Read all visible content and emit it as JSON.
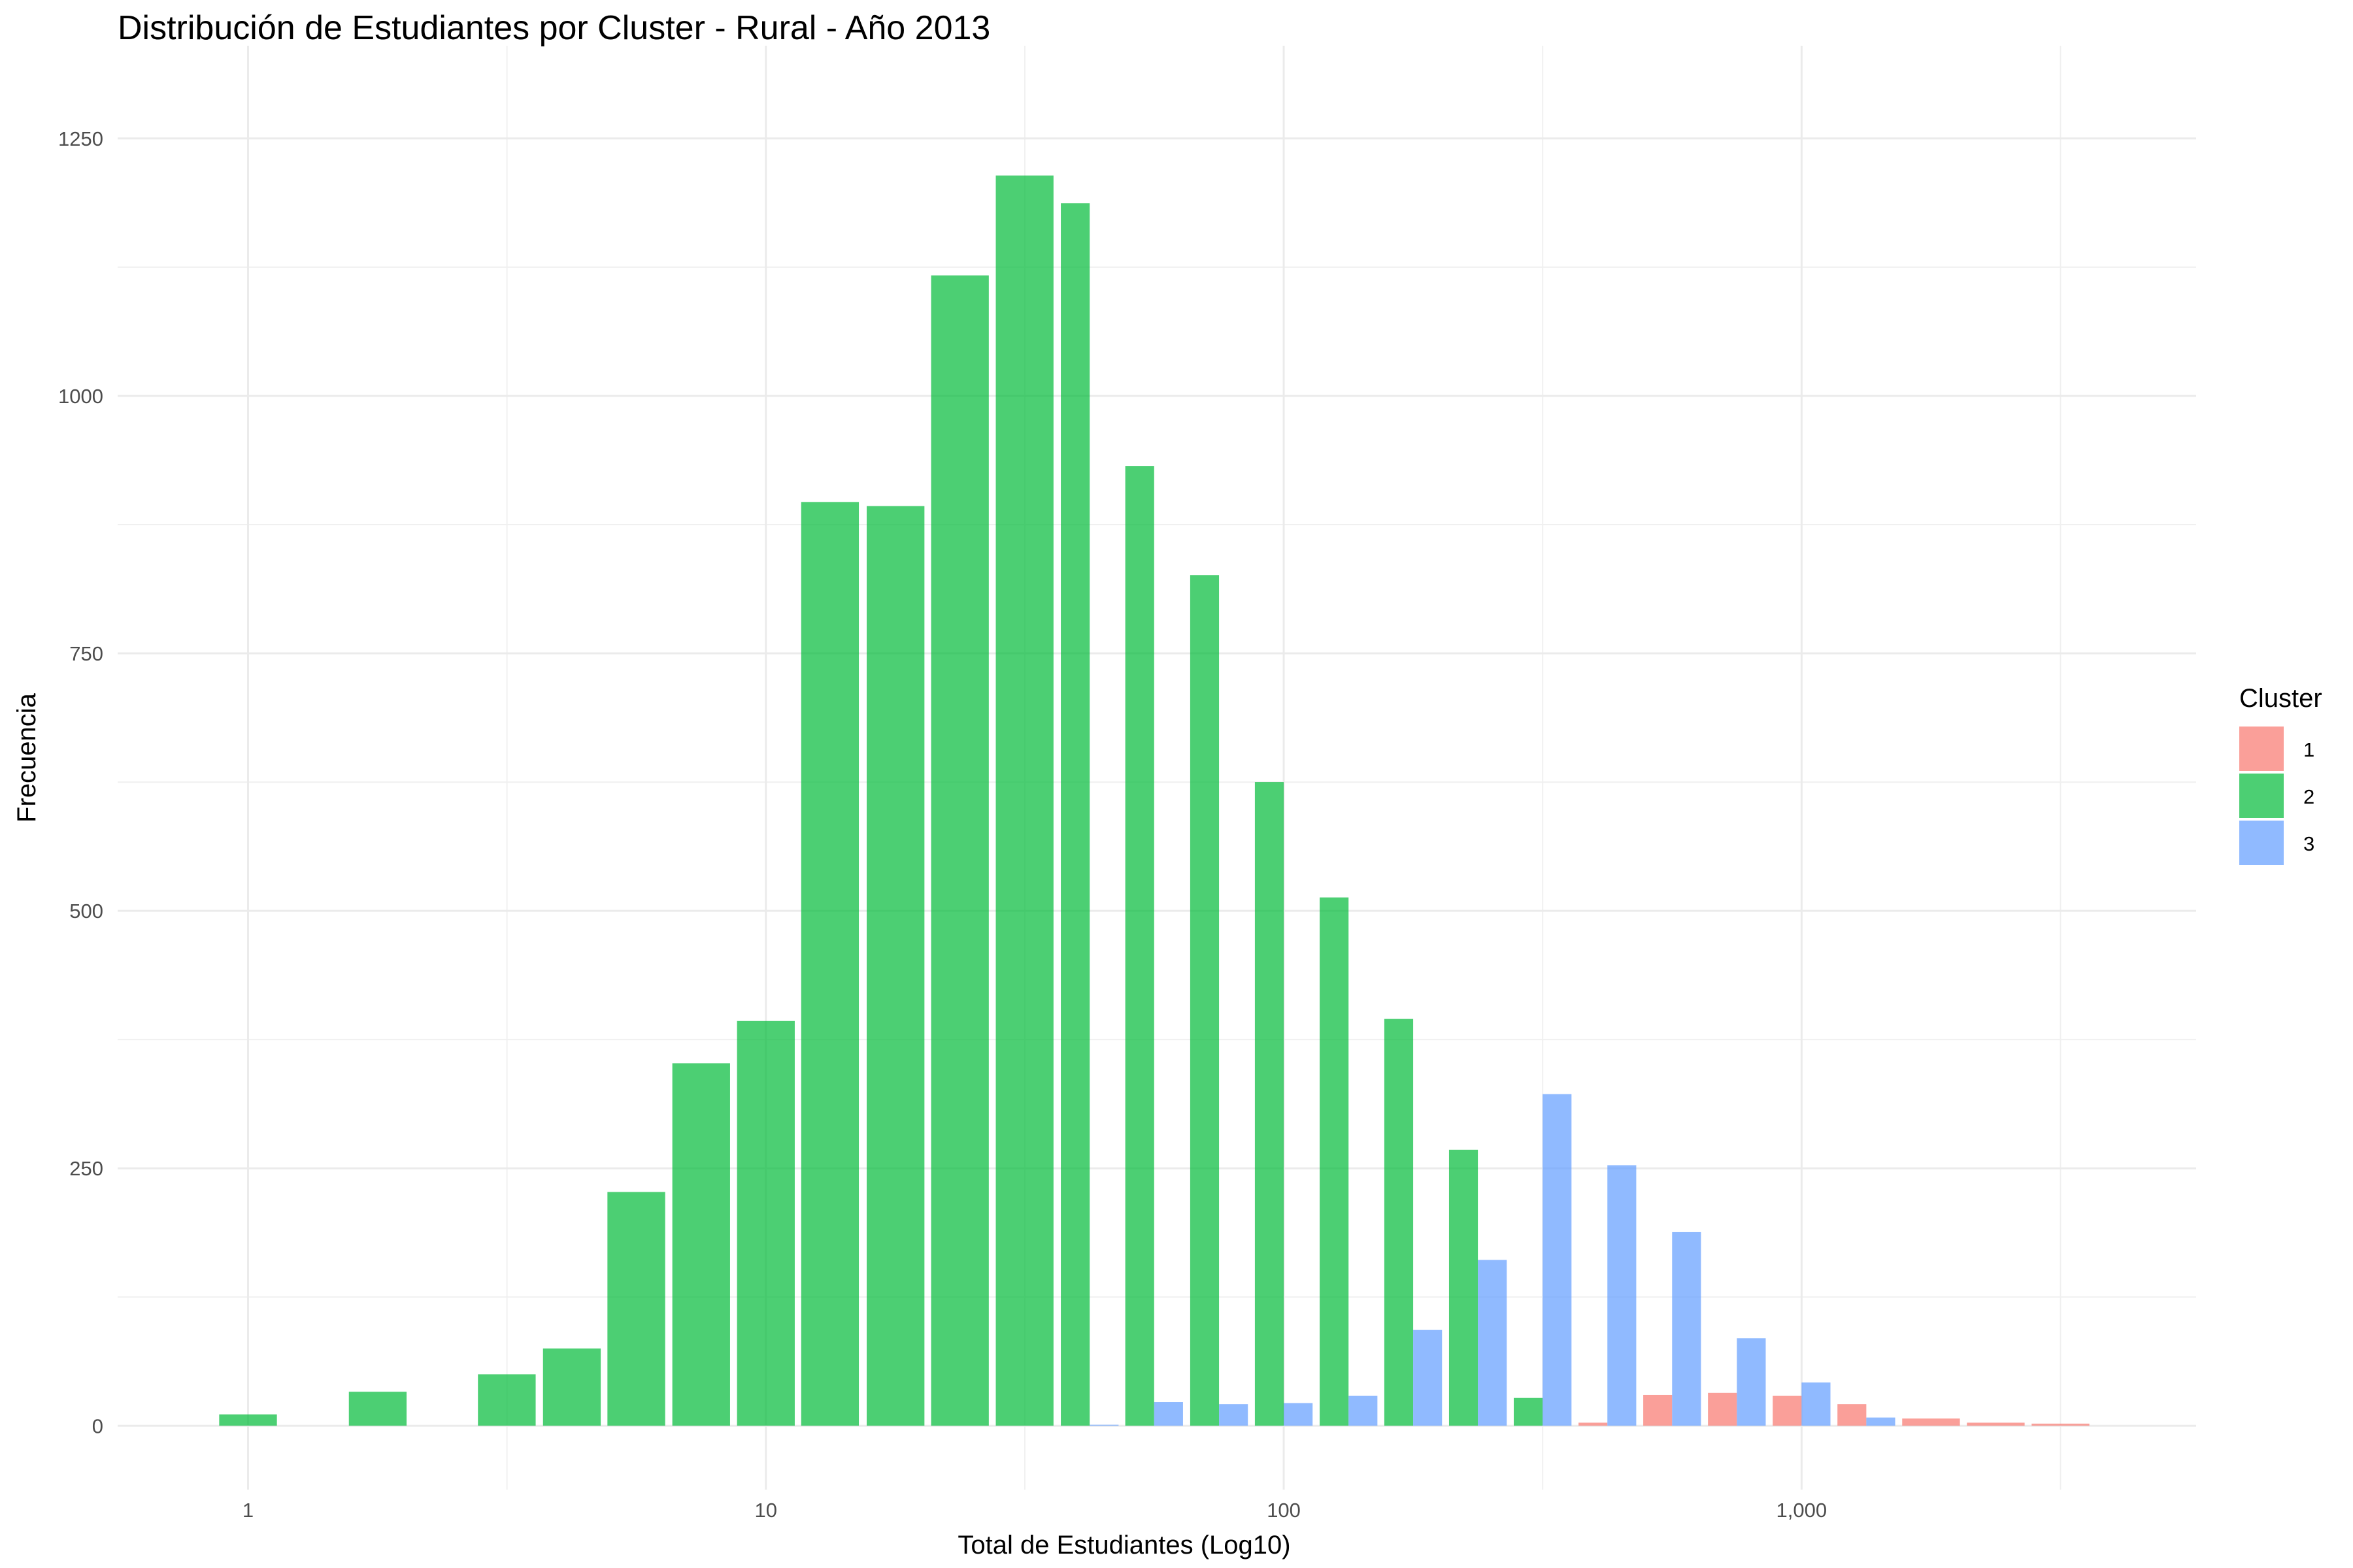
{
  "chart_data": {
    "type": "bar",
    "title": "Distribución de Estudiantes por Cluster - Rural - Año 2013",
    "xlabel": "Total de Estudiantes (Log10)",
    "ylabel": "Frecuencia",
    "x_scale": "log10",
    "x_ticks": [
      {
        "value": 1,
        "label": "1"
      },
      {
        "value": 10,
        "label": "10"
      },
      {
        "value": 100,
        "label": "100"
      },
      {
        "value": 1000,
        "label": "1,000"
      }
    ],
    "y_ticks": [
      {
        "value": 0,
        "label": "0"
      },
      {
        "value": 250,
        "label": "250"
      },
      {
        "value": 500,
        "label": "500"
      },
      {
        "value": 750,
        "label": "750"
      },
      {
        "value": 1000,
        "label": "1000"
      },
      {
        "value": 1250,
        "label": "1250"
      }
    ],
    "xlim": [
      0.56,
      5780
    ],
    "ylim": [
      -62,
      1340
    ],
    "grid": true,
    "legend": {
      "title": "Cluster",
      "position": "right"
    },
    "bin_centers": [
      1.0,
      1.33,
      1.78,
      2.37,
      3.16,
      4.22,
      5.62,
      7.5,
      10.0,
      13.3,
      17.8,
      23.7,
      31.6,
      42.2,
      56.2,
      75.0,
      100.0,
      133.4,
      177.8,
      237.1,
      316.2,
      421.7,
      562.3,
      749.9,
      1000.0,
      1333.5,
      1778.3,
      2371.4,
      3162.3
    ],
    "series": [
      {
        "name": "1",
        "color": "#F8766D",
        "values": [
          0,
          0,
          0,
          0,
          0,
          0,
          0,
          0,
          0,
          0,
          0,
          0,
          0,
          0,
          0,
          0,
          0,
          0,
          0,
          0,
          0,
          3,
          30,
          32,
          29,
          21,
          7,
          3,
          2
        ]
      },
      {
        "name": "2",
        "color": "#00BA38",
        "values": [
          11,
          0,
          33,
          0,
          50,
          75,
          227,
          352,
          393,
          897,
          893,
          1117,
          1214,
          1187,
          932,
          826,
          625,
          513,
          395,
          268,
          27,
          0,
          0,
          0,
          0,
          0,
          0,
          0,
          0
        ]
      },
      {
        "name": "3",
        "color": "#619CFF",
        "values": [
          0,
          0,
          0,
          0,
          0,
          0,
          0,
          0,
          0,
          0,
          0,
          0,
          0,
          1,
          23,
          21,
          22,
          29,
          93,
          161,
          322,
          253,
          188,
          85,
          42,
          8,
          0,
          0,
          0
        ]
      }
    ]
  }
}
